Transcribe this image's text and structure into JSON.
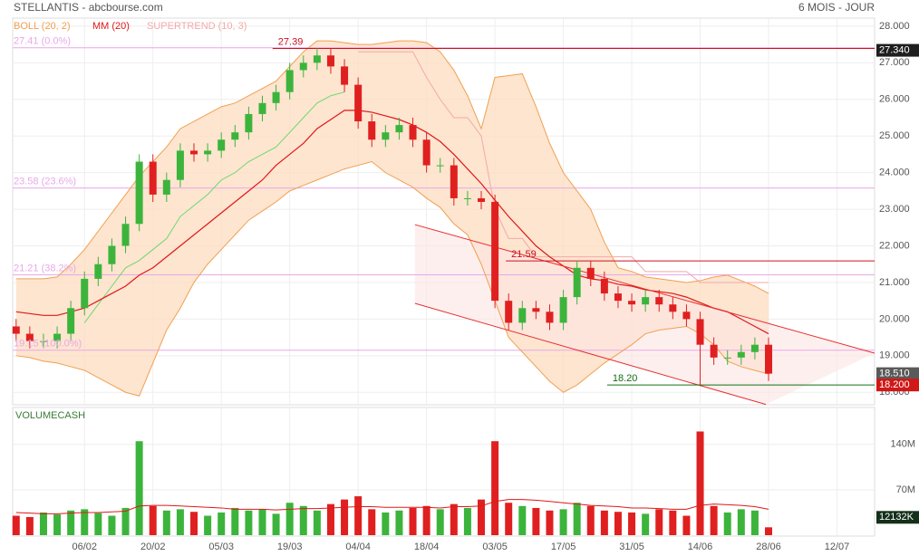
{
  "chart_data": {
    "type": "candlestick",
    "title": "STELLANTIS - abcbourse.com",
    "period": "6 MOIS - JOUR",
    "x": [
      -10,
      -8,
      -6,
      -4,
      -2,
      0,
      2,
      4,
      6,
      8,
      10,
      12,
      14,
      16,
      18,
      20,
      22,
      24,
      26,
      28,
      30,
      32,
      34,
      36,
      38,
      40,
      42,
      44,
      46,
      48,
      50,
      52,
      54,
      56,
      58,
      60,
      62,
      64,
      66,
      68,
      70,
      72,
      74,
      76,
      78,
      80,
      82,
      84,
      86,
      88,
      90,
      92,
      94,
      96,
      98,
      100
    ],
    "open": [
      19.8,
      19.6,
      19.4,
      19.4,
      19.6,
      20.3,
      21.1,
      21.5,
      22.0,
      22.6,
      24.3,
      23.4,
      23.8,
      24.6,
      24.5,
      24.6,
      24.9,
      25.1,
      25.6,
      25.9,
      26.2,
      26.8,
      27.0,
      27.2,
      26.9,
      26.4,
      25.4,
      24.9,
      25.1,
      25.3,
      24.9,
      24.2,
      24.2,
      23.3,
      23.3,
      23.2,
      20.5,
      19.9,
      20.3,
      20.2,
      19.9,
      20.6,
      21.4,
      21.1,
      20.7,
      20.5,
      20.4,
      20.6,
      20.4,
      20.2,
      20.0,
      19.3,
      18.95,
      18.95,
      19.1,
      19.3
    ],
    "high": [
      20.0,
      19.8,
      19.6,
      19.8,
      20.5,
      21.3,
      21.7,
      22.2,
      22.8,
      24.5,
      24.5,
      24.0,
      24.8,
      24.8,
      24.8,
      25.1,
      25.3,
      25.8,
      26.1,
      26.4,
      27.0,
      27.2,
      27.4,
      27.4,
      27.1,
      26.6,
      25.6,
      25.3,
      25.5,
      25.5,
      25.1,
      24.4,
      24.4,
      23.5,
      23.5,
      23.4,
      20.7,
      20.5,
      20.5,
      20.4,
      20.8,
      21.6,
      21.6,
      21.3,
      20.9,
      20.7,
      20.8,
      20.8,
      20.6,
      20.4,
      20.2,
      19.5,
      19.15,
      19.3,
      19.5,
      19.5
    ],
    "low": [
      19.4,
      19.2,
      19.2,
      19.2,
      19.4,
      20.1,
      20.9,
      21.3,
      21.8,
      22.4,
      23.2,
      23.2,
      23.6,
      24.3,
      24.3,
      24.4,
      24.7,
      24.9,
      25.4,
      25.7,
      26.0,
      26.6,
      26.8,
      26.7,
      26.2,
      25.2,
      24.7,
      24.7,
      24.9,
      24.7,
      24.0,
      24.0,
      23.1,
      23.1,
      23.0,
      20.3,
      19.7,
      19.7,
      20.0,
      19.7,
      19.7,
      20.4,
      20.9,
      20.5,
      20.3,
      20.2,
      20.2,
      20.2,
      20.0,
      19.8,
      18.2,
      18.75,
      18.75,
      18.75,
      18.9,
      18.31
    ],
    "close": [
      19.6,
      19.4,
      19.4,
      19.6,
      20.3,
      21.1,
      21.5,
      22.0,
      22.6,
      24.3,
      23.4,
      23.8,
      24.6,
      24.5,
      24.6,
      24.9,
      25.1,
      25.6,
      25.9,
      26.2,
      26.8,
      27.0,
      27.2,
      26.9,
      26.4,
      25.4,
      24.9,
      25.1,
      25.3,
      24.9,
      24.2,
      24.2,
      23.3,
      23.3,
      23.2,
      20.5,
      19.9,
      20.3,
      20.2,
      19.9,
      20.6,
      21.4,
      21.1,
      20.7,
      20.5,
      20.4,
      20.6,
      20.4,
      20.2,
      20.0,
      19.3,
      18.95,
      18.95,
      19.1,
      19.3,
      18.51
    ],
    "up_color": "#3cb43c",
    "down_color": "#e02020",
    "bollinger": {
      "name": "BOLL (20, 2)",
      "color": "#f0a050",
      "fill": "#fcdcc0",
      "upper": [
        21.1,
        21.1,
        21.1,
        21.15,
        21.5,
        21.9,
        22.4,
        22.9,
        23.4,
        23.9,
        24.3,
        24.7,
        25.2,
        25.4,
        25.6,
        25.8,
        25.9,
        26.1,
        26.3,
        26.5,
        26.9,
        27.3,
        27.6,
        27.6,
        27.55,
        27.5,
        27.5,
        27.55,
        27.6,
        27.6,
        27.55,
        27.3,
        26.8,
        26.1,
        25.2,
        26.6,
        26.65,
        26.7,
        25.8,
        24.8,
        24.0,
        23.5,
        23.0,
        22.1,
        21.4,
        21.3,
        21.15,
        21.1,
        21.05,
        21.0,
        21.05,
        21.15,
        21.2,
        21.05,
        20.9,
        20.7
      ],
      "lower": [
        19.0,
        18.95,
        18.85,
        18.8,
        18.7,
        18.6,
        18.4,
        18.2,
        18.0,
        17.9,
        18.8,
        19.7,
        20.3,
        21.0,
        21.5,
        21.9,
        22.3,
        22.7,
        22.95,
        23.2,
        23.5,
        23.65,
        23.8,
        23.95,
        24.1,
        24.2,
        24.3,
        24.0,
        23.8,
        23.6,
        23.3,
        23.05,
        22.6,
        22.3,
        21.5,
        20.5,
        19.5,
        19.1,
        18.7,
        18.3,
        18.0,
        18.2,
        18.5,
        18.8,
        19.05,
        19.3,
        19.6,
        19.7,
        19.75,
        19.8,
        19.6,
        19.3,
        18.85,
        18.7,
        18.6,
        18.5
      ]
    },
    "mm": {
      "name": "MM (20)",
      "color": "#e01818",
      "values": [
        20.2,
        20.15,
        20.1,
        20.1,
        20.2,
        20.3,
        20.5,
        20.7,
        20.9,
        21.2,
        21.4,
        21.7,
        22.0,
        22.3,
        22.6,
        22.9,
        23.2,
        23.5,
        23.8,
        24.2,
        24.5,
        24.8,
        25.2,
        25.45,
        25.7,
        25.7,
        25.65,
        25.55,
        25.45,
        25.3,
        25.1,
        24.85,
        24.5,
        24.1,
        23.7,
        23.25,
        22.8,
        22.4,
        22.0,
        21.7,
        21.45,
        21.2,
        21.1,
        21.05,
        20.95,
        20.9,
        20.8,
        20.75,
        20.7,
        20.6,
        20.45,
        20.3,
        20.2,
        20.0,
        19.8,
        19.6
      ]
    },
    "supertrend": {
      "name": "SUPERTREND (10, 3)",
      "color": "#f4a8a8",
      "support_color": "#6ed86e",
      "values": [
        null,
        null,
        null,
        null,
        null,
        19.9,
        20.4,
        20.9,
        21.4,
        21.6,
        21.9,
        22.2,
        22.8,
        23.1,
        23.4,
        23.8,
        24.0,
        24.3,
        24.5,
        24.7,
        25.1,
        25.5,
        25.9,
        26.1,
        26.2,
        27.3,
        27.3,
        27.3,
        27.3,
        27.3,
        26.6,
        26.0,
        25.5,
        25.5,
        25.0,
        23.0,
        22.2,
        22.2,
        21.7,
        21.7,
        21.7,
        21.7,
        21.7,
        21.7,
        21.7,
        21.7,
        21.3,
        21.3,
        21.3,
        21.3,
        21.0,
        21.0,
        21.0,
        21.0,
        21.0,
        21.0
      ]
    },
    "fib_levels": [
      {
        "value": 27.41,
        "label": "27.41  (0.0%)"
      },
      {
        "value": 23.58,
        "label": "23.58  (23.6%)"
      },
      {
        "value": 21.21,
        "label": "21.21  (38.2%)"
      },
      {
        "value": 19.15,
        "label": "19.15  (100.0%)"
      }
    ],
    "fib_color": "#e8a8e8",
    "levels": [
      {
        "value": 27.39,
        "label": "27.39",
        "from": 27.5,
        "color": "#cc1020"
      },
      {
        "value": 21.59,
        "label": "21.59",
        "from": 61.6,
        "color": "#cc1020"
      },
      {
        "value": 18.2,
        "label": "18.20",
        "from": 76.4,
        "color": "#107010"
      }
    ],
    "trend_channel": {
      "color": "#e83030",
      "fill": "#fde4e4",
      "upper": [
        [
          48.3,
          22.58
        ],
        [
          115.5,
          19.07
        ]
      ],
      "lower": [
        [
          48.3,
          20.43
        ],
        [
          99.6,
          17.67
        ]
      ]
    },
    "price_markers": [
      {
        "value": 27.34,
        "label": "27.340",
        "color": "#1e1e1e"
      },
      {
        "value": 18.51,
        "label": "18.510",
        "color": "#5a5a5a"
      },
      {
        "value": 18.2,
        "label": "18.200",
        "color": "#d01818"
      }
    ],
    "xlim": [
      -10.5,
      115.5
    ],
    "xticks": [
      {
        "value": 0,
        "label": "06/02"
      },
      {
        "value": 10,
        "label": "20/02"
      },
      {
        "value": 20,
        "label": "05/03"
      },
      {
        "value": 30,
        "label": "19/03"
      },
      {
        "value": 40,
        "label": "04/04"
      },
      {
        "value": 50,
        "label": "18/04"
      },
      {
        "value": 60,
        "label": "03/05"
      },
      {
        "value": 70,
        "label": "17/05"
      },
      {
        "value": 80,
        "label": "31/05"
      },
      {
        "value": 90,
        "label": "14/06"
      },
      {
        "value": 100,
        "label": "28/06"
      },
      {
        "value": 110,
        "label": "12/07"
      }
    ],
    "ylim": [
      17.66,
      28.22
    ],
    "yticks": [
      {
        "value": 18,
        "label": "18.000"
      },
      {
        "value": 19,
        "label": "19.000"
      },
      {
        "value": 20,
        "label": "20.000"
      },
      {
        "value": 21,
        "label": "21.000"
      },
      {
        "value": 22,
        "label": "22.000"
      },
      {
        "value": 23,
        "label": "23.000"
      },
      {
        "value": 24,
        "label": "24.000"
      },
      {
        "value": 25,
        "label": "25.000"
      },
      {
        "value": 26,
        "label": "26.000"
      },
      {
        "value": 27,
        "label": "27.000"
      },
      {
        "value": 28,
        "label": "28.000"
      }
    ],
    "volume": {
      "name": "VOLUMECASH",
      "values": [
        30,
        28,
        35,
        32,
        38,
        40,
        34,
        30,
        42,
        145,
        45,
        38,
        40,
        36,
        30,
        35,
        42,
        38,
        40,
        33,
        50,
        45,
        38,
        48,
        55,
        60,
        40,
        35,
        38,
        42,
        45,
        40,
        48,
        42,
        55,
        145,
        50,
        45,
        42,
        38,
        40,
        50,
        45,
        38,
        36,
        35,
        33,
        40,
        38,
        30,
        160,
        45,
        35,
        40,
        38,
        12.132
      ],
      "value_labels": [
        null,
        null,
        null,
        null,
        null,
        null,
        null,
        null,
        null,
        null,
        null,
        null,
        null,
        null,
        null,
        null,
        null,
        null,
        null,
        null,
        null,
        null,
        null,
        null,
        null,
        null,
        null,
        null,
        null,
        null,
        null,
        null,
        null,
        null,
        null,
        null,
        null,
        null,
        null,
        null,
        null,
        null,
        null,
        null,
        null,
        null,
        null,
        null,
        null,
        null,
        null,
        null,
        null,
        null,
        null,
        "12132K"
      ],
      "ma": [
        35,
        34,
        33,
        33,
        34,
        35,
        35,
        36,
        37,
        45,
        46,
        46,
        45,
        44,
        43,
        42,
        40,
        40,
        40,
        39,
        40,
        41,
        41,
        42,
        43,
        44,
        44,
        43,
        43,
        43,
        43,
        42,
        44,
        44,
        45,
        52,
        55,
        55,
        54,
        52,
        50,
        48,
        46,
        45,
        44,
        42,
        42,
        41,
        40,
        40,
        46,
        48,
        47,
        46,
        44,
        40
      ],
      "ma_color": "#e01818",
      "ylim": [
        0,
        197
      ],
      "yticks": [
        {
          "value": 70,
          "label": "70M"
        },
        {
          "value": 140,
          "label": "140M"
        }
      ]
    },
    "grid": true
  }
}
